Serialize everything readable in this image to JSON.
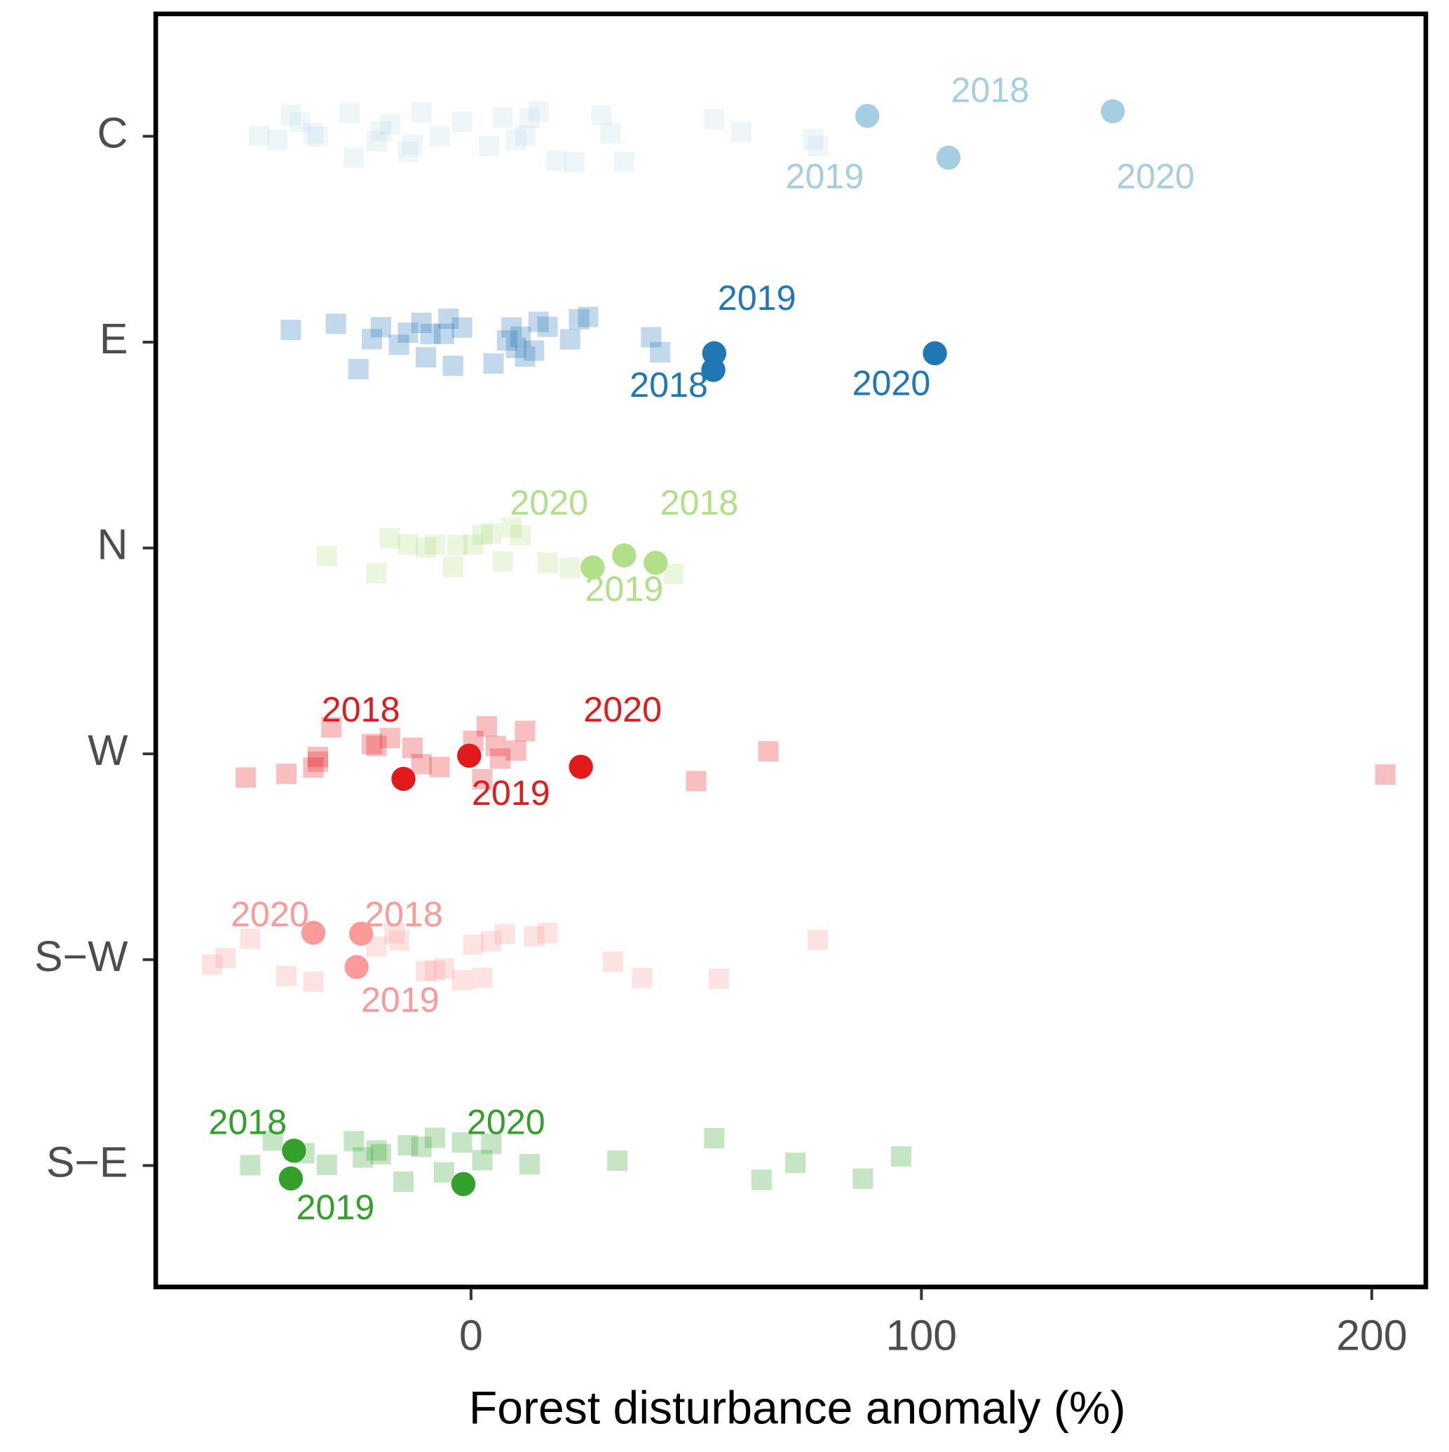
{
  "chart_data": {
    "type": "scatter",
    "xlabel": "Forest disturbance anomaly (%)",
    "xlim": [
      -70,
      212
    ],
    "xticks": [
      0,
      100,
      200
    ],
    "categories": [
      "C",
      "E",
      "N",
      "W",
      "S−W",
      "S−E"
    ],
    "series": [
      {
        "color": "#a6cee3",
        "background": [
          -47,
          -43,
          -40,
          -38,
          -35,
          -34,
          -27,
          -26,
          -21,
          -20,
          -18,
          -14,
          -13,
          -11,
          -7,
          -2,
          4,
          7,
          10,
          12,
          13,
          15,
          19,
          23,
          29,
          31,
          34,
          54,
          60,
          76,
          77
        ],
        "highlight": [
          106,
          88,
          142.5
        ],
        "highlight_labels": [
          "2018",
          "2019",
          "2020"
        ]
      },
      {
        "color": "#1f78b4",
        "background": [
          -40,
          -30,
          -25,
          -22,
          -20,
          -16,
          -14,
          -11,
          -10,
          -9,
          -6,
          -5,
          -4,
          -2,
          5,
          8,
          9,
          10,
          11,
          12,
          14,
          15,
          17,
          22,
          24,
          26,
          40,
          42
        ],
        "highlight": [
          53.8,
          54,
          103
        ],
        "highlight_labels": [
          "2018",
          "2019",
          "2020"
        ]
      },
      {
        "color": "#b2df8a",
        "background": [
          -32,
          -21,
          -18,
          -14,
          -10,
          -8,
          -4,
          -3,
          0.5,
          2.5,
          4.5,
          7,
          9,
          11,
          17,
          22,
          45
        ],
        "highlight": [
          41,
          27,
          34
        ],
        "highlight_labels": [
          "2018",
          "2019",
          "2020"
        ]
      },
      {
        "color": "#e31a1c",
        "background": [
          -50,
          -41,
          -35,
          -34,
          -34,
          -31,
          -22,
          -21,
          -18,
          -13,
          -11,
          -7,
          0.5,
          2.5,
          3.5,
          5.5,
          6.5,
          10,
          12,
          50,
          66,
          203
        ],
        "highlight": [
          -15,
          -0.4,
          24.4
        ],
        "highlight_labels": [
          "2018",
          "2019",
          "2020"
        ]
      },
      {
        "color": "#fb9a99",
        "background": [
          -57.5,
          -54.5,
          -49,
          -41,
          -35,
          -21,
          -17,
          -16,
          -10,
          -8,
          -6,
          -2,
          0.5,
          2.5,
          4.5,
          7.5,
          14,
          17,
          31.5,
          38,
          55,
          77
        ],
        "highlight": [
          -24.4,
          -25.4,
          -35
        ],
        "highlight_labels": [
          "2018",
          "2019",
          "2020"
        ]
      },
      {
        "color": "#33a02c",
        "background": [
          -49,
          -44,
          -37,
          -32,
          -26,
          -24,
          -21,
          -20,
          -15,
          -14,
          -11,
          -8,
          -6,
          -2,
          2.5,
          4.5,
          13,
          32.5,
          54,
          64.5,
          72,
          87,
          95.5
        ],
        "highlight": [
          -39.3,
          -40,
          -1.7
        ],
        "highlight_labels": [
          "2018",
          "2019",
          "2020"
        ]
      }
    ]
  }
}
